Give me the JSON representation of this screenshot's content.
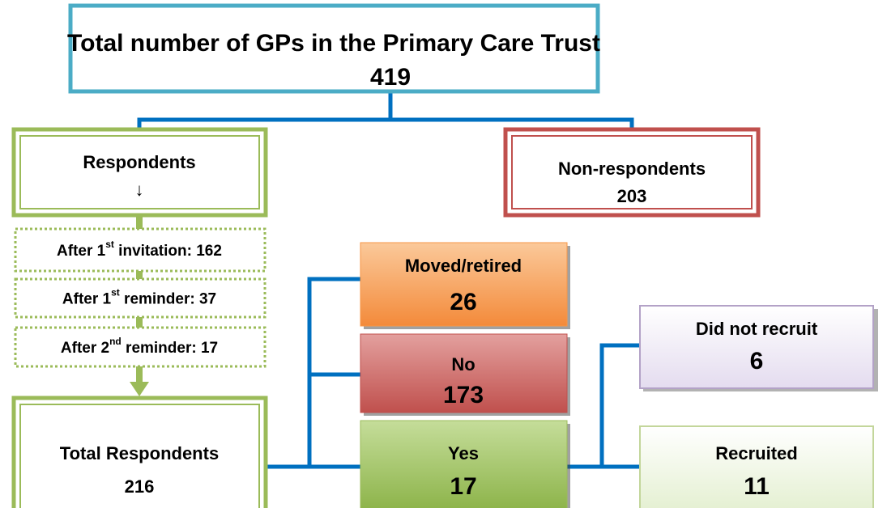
{
  "nodes": {
    "total": {
      "title": "Total number of GPs in the Primary Care Trust",
      "count": "419"
    },
    "respondents": {
      "label": "Respondents",
      "arrow": "↓"
    },
    "non_respondents": {
      "label": "Non-respondents",
      "count": "203"
    },
    "rounds": [
      {
        "before": "After 1",
        "sup": "st",
        "after": " invitation: 162"
      },
      {
        "before": "After 1",
        "sup": "st",
        "after": " reminder: 37"
      },
      {
        "before": "After 2",
        "sup": "nd",
        "after": " reminder: 17"
      }
    ],
    "total_respondents": {
      "label": "Total Respondents",
      "count": "216"
    },
    "moved": {
      "label": "Moved/retired",
      "count": "26"
    },
    "no": {
      "label": "No",
      "count": "173"
    },
    "yes": {
      "label": "Yes",
      "count": "17"
    },
    "did_not_recruit": {
      "label": "Did not recruit",
      "count": "6"
    },
    "recruited": {
      "label": "Recruited",
      "count": "11"
    }
  }
}
